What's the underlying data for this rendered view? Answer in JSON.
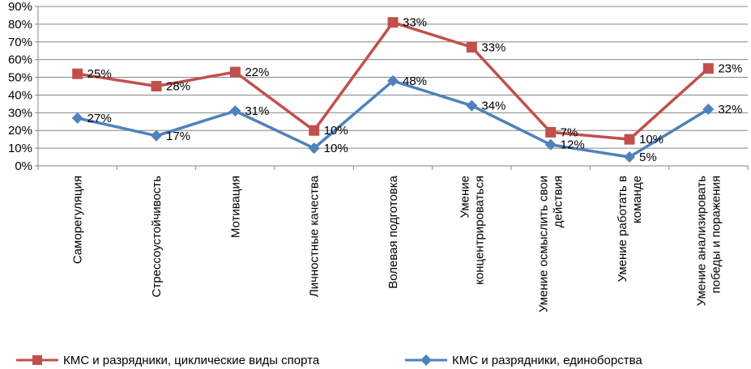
{
  "chart_data": {
    "type": "line",
    "title": "",
    "xlabel": "",
    "ylabel": "",
    "ylim": [
      0,
      90
    ],
    "y_ticks": [
      "0%",
      "10%",
      "20%",
      "30%",
      "40%",
      "50%",
      "60%",
      "70%",
      "80%",
      "90%"
    ],
    "grid": "horizontal",
    "legend_position": "bottom",
    "categories": [
      [
        "Саморегуляция"
      ],
      [
        "Стрессоустойчивость"
      ],
      [
        "Мотивация"
      ],
      [
        "Личностные качества"
      ],
      [
        "Волевая подготовка"
      ],
      [
        "Умение",
        "концентрироваться"
      ],
      [
        "Умение осмыслить свои",
        "действия"
      ],
      [
        "Умение работать в",
        "команде"
      ],
      [
        "Умение анализировать",
        "победы и поражения"
      ]
    ],
    "series": [
      {
        "name": "КМС и разрядники, циклические виды спорта",
        "color": "#C0504D",
        "marker": "square",
        "values": [
          52,
          45,
          53,
          20,
          81,
          67,
          19,
          15,
          55
        ],
        "labels": [
          "25%",
          "28%",
          "22%",
          "10%",
          "33%",
          "33%",
          "7%",
          "10%",
          "23%"
        ]
      },
      {
        "name": "КМС и разрядники, единоборства",
        "color": "#4F81BD",
        "marker": "diamond",
        "values": [
          27,
          17,
          31,
          10,
          48,
          34,
          12,
          5,
          32
        ],
        "labels": [
          "27%",
          "17%",
          "31%",
          "10%",
          "48%",
          "34%",
          "12%",
          "5%",
          "32%"
        ]
      }
    ]
  }
}
